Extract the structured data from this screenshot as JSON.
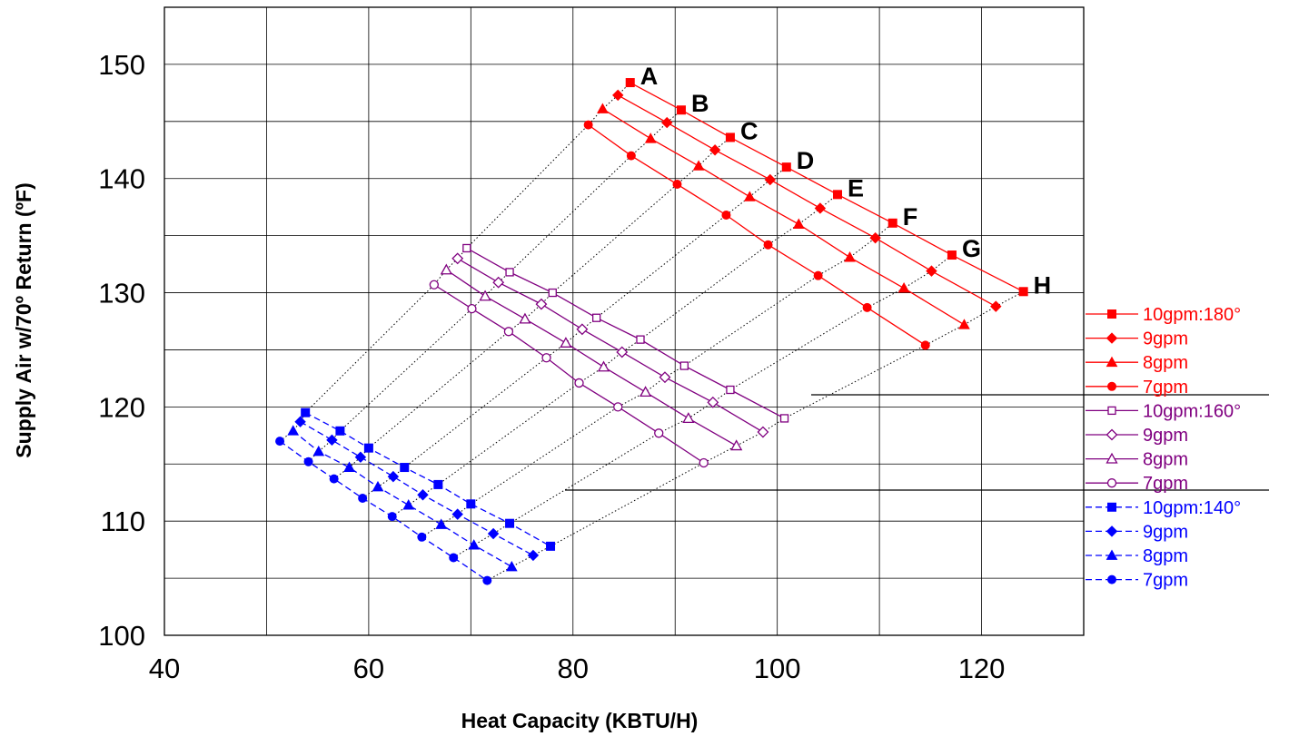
{
  "chart_data": {
    "type": "line",
    "xlabel": "Heat Capacity (KBTU/H)",
    "ylabel": "Supply Air w/70º Return (ºF)",
    "xlim": [
      40,
      130
    ],
    "ylim": [
      100,
      155
    ],
    "x_ticks": [
      40,
      60,
      80,
      100,
      120
    ],
    "y_ticks": [
      100,
      110,
      120,
      130,
      140,
      150
    ],
    "grid": true,
    "legend_position": "right",
    "colors": {
      "red": "#ff0000",
      "purple": "#800080",
      "blue": "#0000ff"
    },
    "series": [
      {
        "name": "10gpm:180°",
        "color": "#ff0000",
        "marker": "square",
        "filled": true,
        "dashed": false,
        "x": [
          85.6,
          90.6,
          95.4,
          100.9,
          105.9,
          111.3,
          117.1,
          124.1
        ],
        "y": [
          148.4,
          146.0,
          143.6,
          141.0,
          138.6,
          136.1,
          133.3,
          130.1
        ]
      },
      {
        "name": "9gpm",
        "color": "#ff0000",
        "marker": "diamond",
        "filled": true,
        "dashed": false,
        "x": [
          84.4,
          89.2,
          93.9,
          99.3,
          104.2,
          109.6,
          115.1,
          121.4
        ],
        "y": [
          147.3,
          144.9,
          142.5,
          139.9,
          137.4,
          134.8,
          131.9,
          128.8
        ]
      },
      {
        "name": "8gpm",
        "color": "#ff0000",
        "marker": "triangle",
        "filled": true,
        "dashed": false,
        "x": [
          82.9,
          87.6,
          92.3,
          97.3,
          102.1,
          107.1,
          112.4,
          118.3
        ],
        "y": [
          146.1,
          143.5,
          141.1,
          138.4,
          136.0,
          133.1,
          130.4,
          127.2
        ]
      },
      {
        "name": "7gpm",
        "color": "#ff0000",
        "marker": "circle",
        "filled": true,
        "dashed": false,
        "x": [
          81.5,
          85.7,
          90.2,
          95.0,
          99.1,
          104.0,
          108.8,
          114.5
        ],
        "y": [
          144.7,
          142.0,
          139.5,
          136.8,
          134.2,
          131.5,
          128.7,
          125.4
        ]
      },
      {
        "name": "10gpm:160°",
        "color": "#800080",
        "marker": "square",
        "filled": false,
        "dashed": false,
        "x": [
          69.6,
          73.8,
          78.0,
          82.3,
          86.6,
          90.9,
          95.4,
          100.7
        ],
        "y": [
          133.9,
          131.8,
          130.0,
          127.8,
          125.9,
          123.6,
          121.5,
          119.0
        ]
      },
      {
        "name": "9gpm",
        "color": "#800080",
        "marker": "diamond",
        "filled": false,
        "dashed": false,
        "x": [
          68.7,
          72.7,
          76.9,
          80.9,
          84.8,
          89.0,
          93.7,
          98.6
        ],
        "y": [
          133.0,
          130.9,
          129.0,
          126.8,
          124.8,
          122.6,
          120.4,
          117.8
        ]
      },
      {
        "name": "8gpm",
        "color": "#800080",
        "marker": "triangle",
        "filled": false,
        "dashed": false,
        "x": [
          67.6,
          71.4,
          75.3,
          79.3,
          83.0,
          87.1,
          91.3,
          96.0
        ],
        "y": [
          132.0,
          129.7,
          127.7,
          125.6,
          123.5,
          121.3,
          119.0,
          116.6
        ]
      },
      {
        "name": "7gpm",
        "color": "#800080",
        "marker": "circle",
        "filled": false,
        "dashed": false,
        "x": [
          66.4,
          70.1,
          73.7,
          77.4,
          80.6,
          84.4,
          88.4,
          92.8
        ],
        "y": [
          130.7,
          128.6,
          126.6,
          124.3,
          122.1,
          120.0,
          117.7,
          115.1
        ]
      },
      {
        "name": "10gpm:140°",
        "color": "#0000ff",
        "marker": "square",
        "filled": true,
        "dashed": true,
        "x": [
          53.8,
          57.2,
          60.0,
          63.5,
          66.8,
          70.0,
          73.8,
          77.8
        ],
        "y": [
          119.5,
          117.9,
          116.4,
          114.7,
          113.2,
          111.5,
          109.8,
          107.8
        ]
      },
      {
        "name": "9gpm",
        "color": "#0000ff",
        "marker": "diamond",
        "filled": true,
        "dashed": true,
        "x": [
          53.3,
          56.4,
          59.2,
          62.4,
          65.3,
          68.7,
          72.2,
          76.1
        ],
        "y": [
          118.7,
          117.1,
          115.6,
          113.9,
          112.3,
          110.6,
          108.9,
          107.0
        ]
      },
      {
        "name": "8gpm",
        "color": "#0000ff",
        "marker": "triangle",
        "filled": true,
        "dashed": true,
        "x": [
          52.6,
          55.1,
          58.1,
          60.9,
          63.9,
          67.1,
          70.3,
          74.0
        ],
        "y": [
          117.9,
          116.1,
          114.7,
          113.0,
          111.4,
          109.7,
          107.9,
          106.0
        ]
      },
      {
        "name": "7gpm",
        "color": "#0000ff",
        "marker": "circle",
        "filled": true,
        "dashed": true,
        "x": [
          51.3,
          54.1,
          56.6,
          59.4,
          62.3,
          65.2,
          68.3,
          71.6
        ],
        "y": [
          117.0,
          115.2,
          113.7,
          112.0,
          110.4,
          108.6,
          106.8,
          104.8
        ]
      }
    ],
    "curve_labels": [
      "A",
      "B",
      "C",
      "D",
      "E",
      "F",
      "G",
      "H"
    ]
  }
}
